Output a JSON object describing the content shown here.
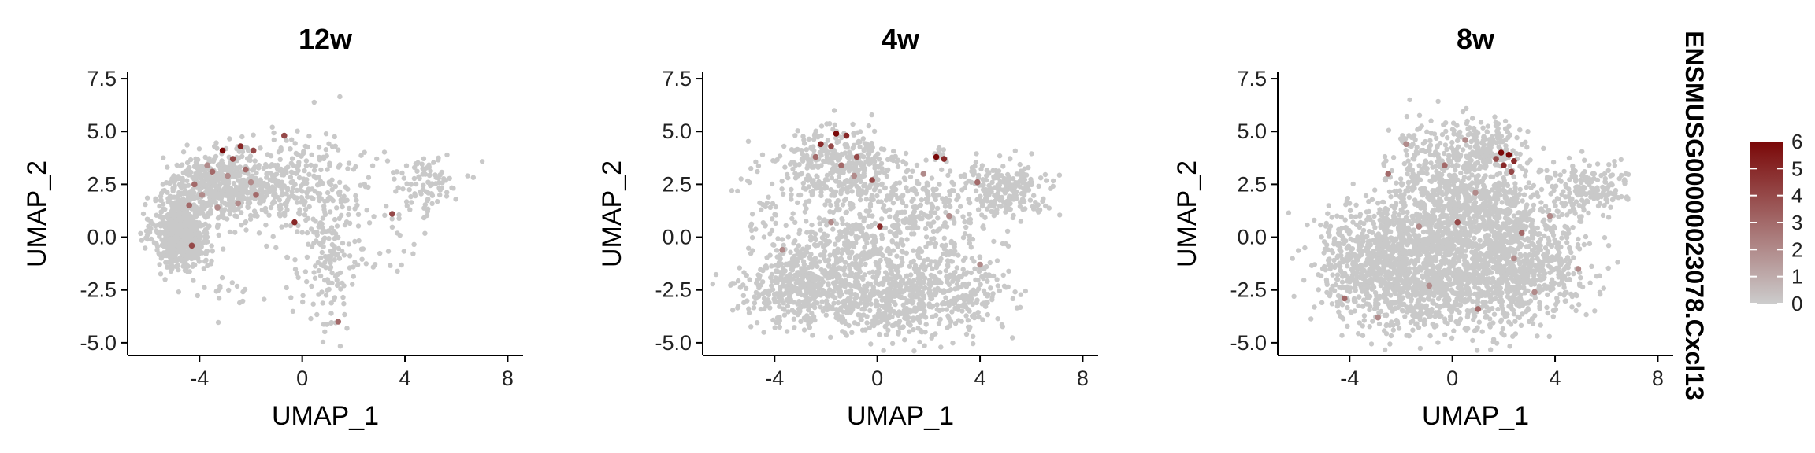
{
  "feature_name": "ENSMUSG00000023078.Cxcl13",
  "chart_data": [
    {
      "type": "scatter",
      "title": "12w",
      "xlabel": "UMAP_1",
      "ylabel": "UMAP_2",
      "xlim": [
        -6.8,
        8.6
      ],
      "ylim": [
        -5.6,
        7.8
      ],
      "xticks": [
        -4,
        0,
        4,
        8
      ],
      "xtick_labels": [
        "-4",
        "0",
        "4",
        "8"
      ],
      "yticks": [
        -5.0,
        -2.5,
        0.0,
        2.5,
        5.0,
        7.5
      ],
      "ytick_labels": [
        "-5.0",
        "-2.5",
        "0.0",
        "2.5",
        "5.0",
        "7.5"
      ],
      "grid": false,
      "background_clusters": [
        {
          "cx": -4.7,
          "cy": 0.2,
          "sx": 0.55,
          "sy": 0.85,
          "n": 650
        },
        {
          "cx": -3.2,
          "cy": 2.4,
          "sx": 1.0,
          "sy": 0.8,
          "n": 520
        },
        {
          "cx": -1.0,
          "cy": 2.6,
          "sx": 0.8,
          "sy": 1.0,
          "n": 160
        },
        {
          "cx": 0.8,
          "cy": 2.0,
          "sx": 1.0,
          "sy": 1.4,
          "n": 170
        },
        {
          "cx": 1.0,
          "cy": -1.8,
          "sx": 0.6,
          "sy": 1.3,
          "n": 110
        },
        {
          "cx": 4.8,
          "cy": 2.6,
          "sx": 0.7,
          "sy": 0.7,
          "n": 90
        },
        {
          "cx": 2.8,
          "cy": 0.0,
          "sx": 1.2,
          "sy": 1.3,
          "n": 35
        },
        {
          "cx": -3.0,
          "cy": -2.5,
          "sx": 0.8,
          "sy": 0.7,
          "n": 15
        }
      ],
      "expressing_cells": [
        {
          "x": -3.1,
          "y": 4.1,
          "v": 6
        },
        {
          "x": -1.9,
          "y": 4.1,
          "v": 4
        },
        {
          "x": -2.4,
          "y": 4.3,
          "v": 5
        },
        {
          "x": -2.7,
          "y": 3.7,
          "v": 4
        },
        {
          "x": -3.5,
          "y": 3.1,
          "v": 3
        },
        {
          "x": -4.2,
          "y": 2.5,
          "v": 3
        },
        {
          "x": -2.2,
          "y": 3.2,
          "v": 3
        },
        {
          "x": -2.9,
          "y": 2.9,
          "v": 2
        },
        {
          "x": -3.9,
          "y": 2.0,
          "v": 2
        },
        {
          "x": -1.8,
          "y": 2.0,
          "v": 3
        },
        {
          "x": -2.5,
          "y": 1.6,
          "v": 2
        },
        {
          "x": -4.4,
          "y": 1.5,
          "v": 3
        },
        {
          "x": -3.3,
          "y": 1.4,
          "v": 2
        },
        {
          "x": -4.3,
          "y": -0.4,
          "v": 4
        },
        {
          "x": -0.7,
          "y": 4.8,
          "v": 4
        },
        {
          "x": -0.3,
          "y": 0.7,
          "v": 5
        },
        {
          "x": 3.5,
          "y": 1.1,
          "v": 4
        },
        {
          "x": 1.4,
          "y": -4.0,
          "v": 3
        },
        {
          "x": -3.7,
          "y": 3.4,
          "v": 2
        },
        {
          "x": -2.0,
          "y": 2.6,
          "v": 2
        }
      ]
    },
    {
      "type": "scatter",
      "title": "4w",
      "xlabel": "UMAP_1",
      "ylabel": "UMAP_2",
      "xlim": [
        -6.8,
        8.6
      ],
      "ylim": [
        -5.6,
        7.8
      ],
      "xticks": [
        -4,
        0,
        4,
        8
      ],
      "xtick_labels": [
        "-4",
        "0",
        "4",
        "8"
      ],
      "yticks": [
        -5.0,
        -2.5,
        0.0,
        2.5,
        5.0,
        7.5
      ],
      "ytick_labels": [
        "-5.0",
        "-2.5",
        "0.0",
        "2.5",
        "5.0",
        "7.5"
      ],
      "grid": false,
      "background_clusters": [
        {
          "cx": -1.5,
          "cy": 3.2,
          "sx": 1.3,
          "sy": 1.0,
          "n": 420
        },
        {
          "cx": -3.1,
          "cy": -2.3,
          "sx": 1.0,
          "sy": 0.9,
          "n": 420
        },
        {
          "cx": 0.0,
          "cy": -2.8,
          "sx": 1.3,
          "sy": 1.0,
          "n": 380
        },
        {
          "cx": 2.5,
          "cy": -2.6,
          "sx": 1.3,
          "sy": 1.0,
          "n": 340
        },
        {
          "cx": -1.0,
          "cy": -0.3,
          "sx": 1.2,
          "sy": 1.0,
          "n": 280
        },
        {
          "cx": 2.0,
          "cy": 1.2,
          "sx": 1.2,
          "sy": 1.0,
          "n": 220
        },
        {
          "cx": 5.0,
          "cy": 2.3,
          "sx": 0.9,
          "sy": 0.6,
          "n": 220
        },
        {
          "cx": -4.3,
          "cy": 1.2,
          "sx": 0.5,
          "sy": 1.0,
          "n": 25
        },
        {
          "cx": 2.4,
          "cy": 3.9,
          "sx": 0.2,
          "sy": 0.15,
          "n": 12
        }
      ],
      "expressing_cells": [
        {
          "x": -1.6,
          "y": 4.9,
          "v": 6
        },
        {
          "x": -1.2,
          "y": 4.8,
          "v": 5
        },
        {
          "x": -2.2,
          "y": 4.4,
          "v": 5
        },
        {
          "x": -1.8,
          "y": 4.3,
          "v": 4
        },
        {
          "x": -0.8,
          "y": 3.8,
          "v": 4
        },
        {
          "x": -1.4,
          "y": 3.4,
          "v": 3
        },
        {
          "x": -2.4,
          "y": 3.8,
          "v": 3
        },
        {
          "x": -0.2,
          "y": 2.7,
          "v": 4
        },
        {
          "x": -0.9,
          "y": 2.9,
          "v": 2
        },
        {
          "x": 2.3,
          "y": 3.8,
          "v": 6
        },
        {
          "x": 2.6,
          "y": 3.7,
          "v": 5
        },
        {
          "x": 3.9,
          "y": 2.6,
          "v": 3
        },
        {
          "x": 0.1,
          "y": 0.5,
          "v": 5
        },
        {
          "x": -1.8,
          "y": 0.7,
          "v": 2
        },
        {
          "x": 2.8,
          "y": 1.0,
          "v": 2
        },
        {
          "x": -3.7,
          "y": -0.6,
          "v": 2
        },
        {
          "x": 4.0,
          "y": -1.3,
          "v": 2
        },
        {
          "x": 1.8,
          "y": 3.0,
          "v": 2
        }
      ]
    },
    {
      "type": "scatter",
      "title": "8w",
      "xlabel": "UMAP_1",
      "ylabel": "UMAP_2",
      "xlim": [
        -6.8,
        8.6
      ],
      "ylim": [
        -5.6,
        7.8
      ],
      "xticks": [
        -4,
        0,
        4,
        8
      ],
      "xtick_labels": [
        "-4",
        "0",
        "4",
        "8"
      ],
      "yticks": [
        -5.0,
        -2.5,
        0.0,
        2.5,
        5.0,
        7.5
      ],
      "ytick_labels": [
        "-5.0",
        "-2.5",
        "0.0",
        "2.5",
        "5.0",
        "7.5"
      ],
      "grid": false,
      "background_clusters": [
        {
          "cx": -2.5,
          "cy": -1.8,
          "sx": 1.3,
          "sy": 1.2,
          "n": 700
        },
        {
          "cx": 0.5,
          "cy": -2.2,
          "sx": 1.4,
          "sy": 1.2,
          "n": 650
        },
        {
          "cx": 3.0,
          "cy": -1.5,
          "sx": 1.2,
          "sy": 1.2,
          "n": 450
        },
        {
          "cx": -1.0,
          "cy": 0.5,
          "sx": 1.5,
          "sy": 1.0,
          "n": 450
        },
        {
          "cx": 1.5,
          "cy": 1.0,
          "sx": 1.2,
          "sy": 1.0,
          "n": 400
        },
        {
          "cx": -0.2,
          "cy": 3.5,
          "sx": 1.2,
          "sy": 1.0,
          "n": 380
        },
        {
          "cx": 5.3,
          "cy": 2.3,
          "sx": 0.8,
          "sy": 0.6,
          "n": 180
        },
        {
          "cx": 1.8,
          "cy": 4.2,
          "sx": 0.5,
          "sy": 0.6,
          "n": 100
        },
        {
          "cx": -4.0,
          "cy": -0.5,
          "sx": 0.6,
          "sy": 1.2,
          "n": 80
        }
      ],
      "expressing_cells": [
        {
          "x": 1.9,
          "y": 4.0,
          "v": 6
        },
        {
          "x": 2.2,
          "y": 3.9,
          "v": 6
        },
        {
          "x": 2.4,
          "y": 3.6,
          "v": 5
        },
        {
          "x": 2.0,
          "y": 3.4,
          "v": 5
        },
        {
          "x": 2.3,
          "y": 3.1,
          "v": 4
        },
        {
          "x": 1.7,
          "y": 3.7,
          "v": 4
        },
        {
          "x": -2.5,
          "y": 3.0,
          "v": 3
        },
        {
          "x": -0.3,
          "y": 3.4,
          "v": 3
        },
        {
          "x": 0.9,
          "y": 2.1,
          "v": 2
        },
        {
          "x": 0.2,
          "y": 0.7,
          "v": 4
        },
        {
          "x": -1.3,
          "y": 0.5,
          "v": 2
        },
        {
          "x": 2.7,
          "y": 0.2,
          "v": 3
        },
        {
          "x": 3.8,
          "y": 1.0,
          "v": 2
        },
        {
          "x": -4.2,
          "y": -2.9,
          "v": 3
        },
        {
          "x": -0.9,
          "y": -2.3,
          "v": 2
        },
        {
          "x": 1.0,
          "y": -3.4,
          "v": 3
        },
        {
          "x": 2.4,
          "y": -1.0,
          "v": 2
        },
        {
          "x": 4.9,
          "y": -1.5,
          "v": 2
        },
        {
          "x": -2.9,
          "y": -3.8,
          "v": 2
        },
        {
          "x": 0.5,
          "y": 4.6,
          "v": 2
        },
        {
          "x": -1.8,
          "y": 4.4,
          "v": 2
        },
        {
          "x": 3.2,
          "y": -2.6,
          "v": 2
        }
      ]
    }
  ],
  "legend": {
    "type": "colorbar",
    "min": 0,
    "max": 6,
    "ticks": [
      0,
      1,
      2,
      3,
      4,
      5,
      6
    ],
    "tick_labels": [
      "0",
      "1",
      "2",
      "3",
      "4",
      "5",
      "6"
    ],
    "color_low": "#cccccc",
    "color_high": "#7a0808"
  },
  "colors": {
    "background_point": "#c9c9c9",
    "low": "#cccccc",
    "high": "#7a0808",
    "axis": "#000000"
  }
}
